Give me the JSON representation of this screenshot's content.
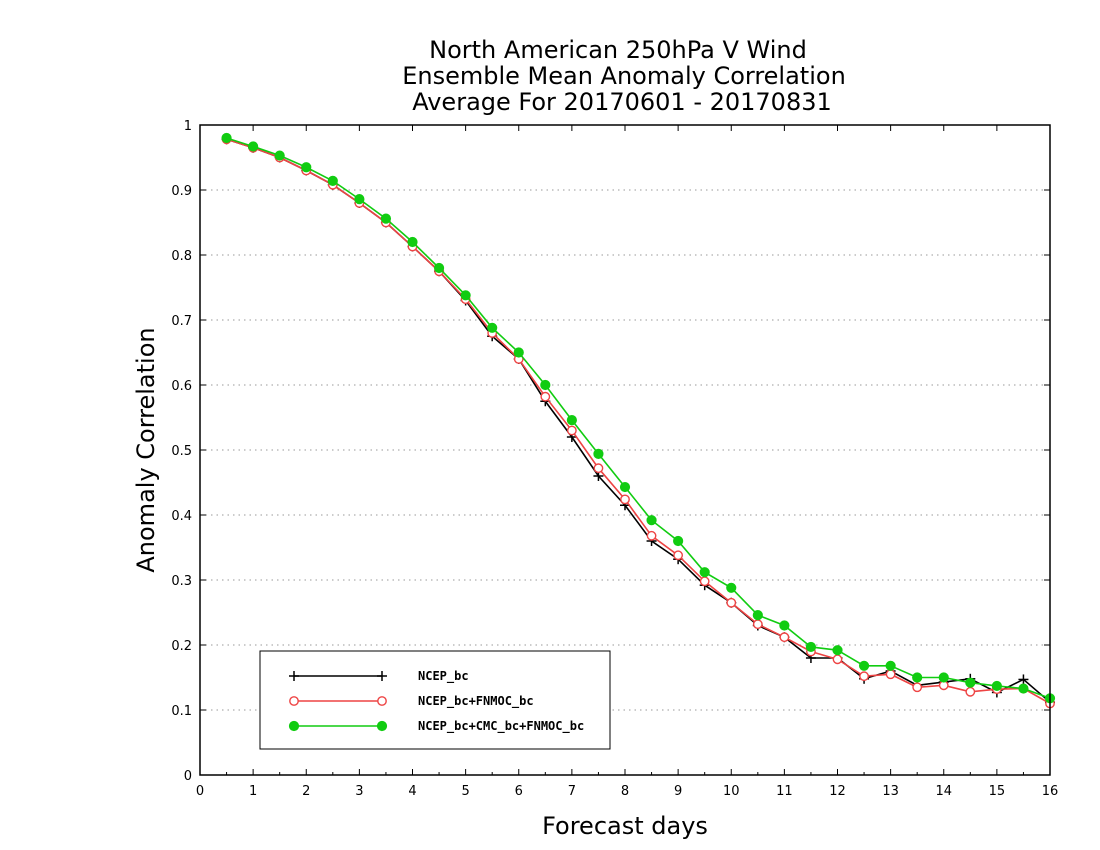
{
  "chart_data": {
    "type": "line",
    "title": [
      "North American 250hPa V Wind",
      "Ensemble Mean Anomaly Correlation",
      "Average For 20170601 - 20170831"
    ],
    "xlabel": "Forecast days",
    "ylabel": "Anomaly Correlation",
    "xlim": [
      0,
      16
    ],
    "ylim": [
      0,
      1
    ],
    "x_ticks": [
      "0",
      "1",
      "2",
      "3",
      "4",
      "5",
      "6",
      "7",
      "8",
      "9",
      "10",
      "11",
      "12",
      "13",
      "14",
      "15",
      "16"
    ],
    "y_ticks": [
      "0",
      "0.1",
      "0.2",
      "0.3",
      "0.4",
      "0.5",
      "0.6",
      "0.7",
      "0.8",
      "0.9",
      "1"
    ],
    "grid": "horizontal dotted",
    "legend_position": "bottom-left",
    "x": [
      0.5,
      1,
      1.5,
      2,
      2.5,
      3,
      3.5,
      4,
      4.5,
      5,
      5.5,
      6,
      6.5,
      7,
      7.5,
      8,
      8.5,
      9,
      9.5,
      10,
      10.5,
      11,
      11.5,
      12,
      12.5,
      13,
      13.5,
      14,
      14.5,
      15,
      15.5,
      16
    ],
    "series": [
      {
        "name": "NCEP_bc",
        "color": "#000000",
        "marker": "plus",
        "values": [
          0.978,
          0.965,
          0.95,
          0.93,
          0.908,
          0.88,
          0.85,
          0.813,
          0.775,
          0.73,
          0.675,
          0.64,
          0.575,
          0.52,
          0.46,
          0.415,
          0.36,
          0.332,
          0.292,
          0.265,
          0.23,
          0.212,
          0.18,
          0.18,
          0.148,
          0.16,
          0.138,
          0.143,
          0.148,
          0.127,
          0.147,
          0.112
        ]
      },
      {
        "name": "NCEP_bc+FNMOC_bc",
        "color": "#ee4444",
        "marker": "open-circle",
        "values": [
          0.978,
          0.965,
          0.95,
          0.93,
          0.908,
          0.88,
          0.85,
          0.813,
          0.775,
          0.732,
          0.68,
          0.64,
          0.582,
          0.53,
          0.472,
          0.424,
          0.368,
          0.338,
          0.298,
          0.265,
          0.232,
          0.212,
          0.19,
          0.178,
          0.152,
          0.155,
          0.135,
          0.138,
          0.128,
          0.132,
          0.133,
          0.11
        ]
      },
      {
        "name": "NCEP_bc+CMC_bc+FNMOC_bc",
        "color": "#11cc11",
        "marker": "filled-circle",
        "values": [
          0.98,
          0.967,
          0.953,
          0.935,
          0.914,
          0.886,
          0.856,
          0.82,
          0.78,
          0.738,
          0.688,
          0.65,
          0.6,
          0.546,
          0.494,
          0.443,
          0.392,
          0.36,
          0.312,
          0.288,
          0.246,
          0.23,
          0.197,
          0.192,
          0.168,
          0.168,
          0.15,
          0.15,
          0.142,
          0.137,
          0.133,
          0.118
        ]
      }
    ]
  }
}
